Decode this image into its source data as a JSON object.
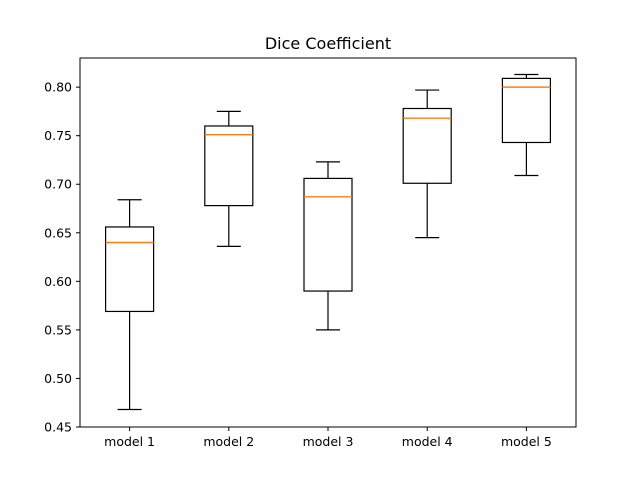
{
  "chart_data": {
    "type": "box",
    "title": "Dice Coefficient",
    "xlabel": "",
    "ylabel": "",
    "categories": [
      "model 1",
      "model 2",
      "model 3",
      "model 4",
      "model 5"
    ],
    "boxes": [
      {
        "whisker_low": 0.468,
        "q1": 0.569,
        "median": 0.64,
        "q3": 0.656,
        "whisker_high": 0.684
      },
      {
        "whisker_low": 0.636,
        "q1": 0.678,
        "median": 0.751,
        "q3": 0.76,
        "whisker_high": 0.775
      },
      {
        "whisker_low": 0.55,
        "q1": 0.59,
        "median": 0.687,
        "q3": 0.706,
        "whisker_high": 0.723
      },
      {
        "whisker_low": 0.645,
        "q1": 0.701,
        "median": 0.768,
        "q3": 0.778,
        "whisker_high": 0.797
      },
      {
        "whisker_low": 0.709,
        "q1": 0.743,
        "median": 0.8,
        "q3": 0.809,
        "whisker_high": 0.813
      }
    ],
    "ylim": [
      0.45,
      0.83
    ],
    "yticks": [
      "0.45",
      "0.50",
      "0.55",
      "0.60",
      "0.65",
      "0.70",
      "0.75",
      "0.80"
    ],
    "grid": false,
    "colors": {
      "box": "#000000",
      "median": "#ff7f0e",
      "background": "#ffffff"
    }
  }
}
